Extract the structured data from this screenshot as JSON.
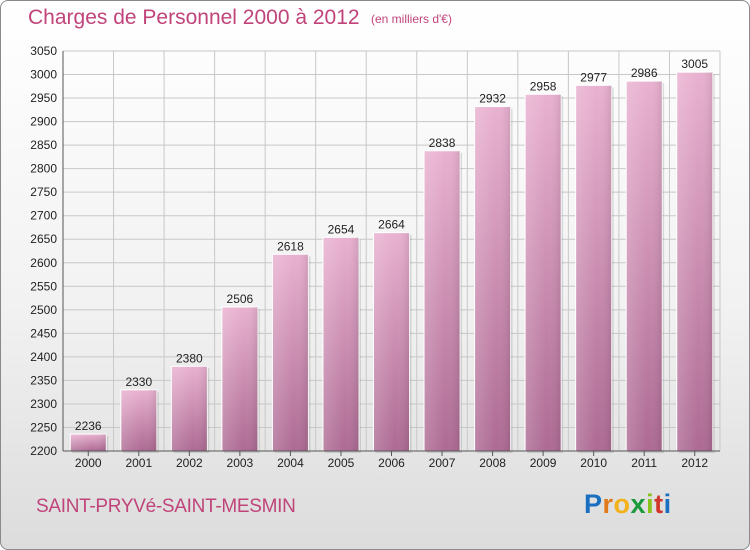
{
  "header": {
    "title": "Charges de Personnel 2000 à 2012",
    "subtitle": "(en milliers d'€)"
  },
  "footer": {
    "commune": "SAINT-PRYVé-SAINT-MESMIN",
    "logo": [
      "P",
      "r",
      "o",
      "x",
      "i",
      "t",
      "i"
    ]
  },
  "colors": {
    "accent": "#c0447a",
    "bar_top": "#e9b1d0",
    "bar_bottom": "#ad6a93",
    "grid": "#c8c8c8"
  },
  "chart_data": {
    "type": "bar",
    "title": "Charges de Personnel 2000 à 2012",
    "subtitle": "(en milliers d'€)",
    "xlabel": "",
    "ylabel": "",
    "categories": [
      "2000",
      "2001",
      "2002",
      "2003",
      "2004",
      "2005",
      "2006",
      "2007",
      "2008",
      "2009",
      "2010",
      "2011",
      "2012"
    ],
    "values": [
      2236,
      2330,
      2380,
      2506,
      2618,
      2654,
      2664,
      2838,
      2932,
      2958,
      2977,
      2986,
      3005
    ],
    "ylim": [
      2200,
      3050
    ],
    "yticks": [
      2200,
      2250,
      2300,
      2350,
      2400,
      2450,
      2500,
      2550,
      2600,
      2650,
      2700,
      2750,
      2800,
      2850,
      2900,
      2950,
      3000,
      3050
    ],
    "grid": true,
    "data_labels": true
  }
}
